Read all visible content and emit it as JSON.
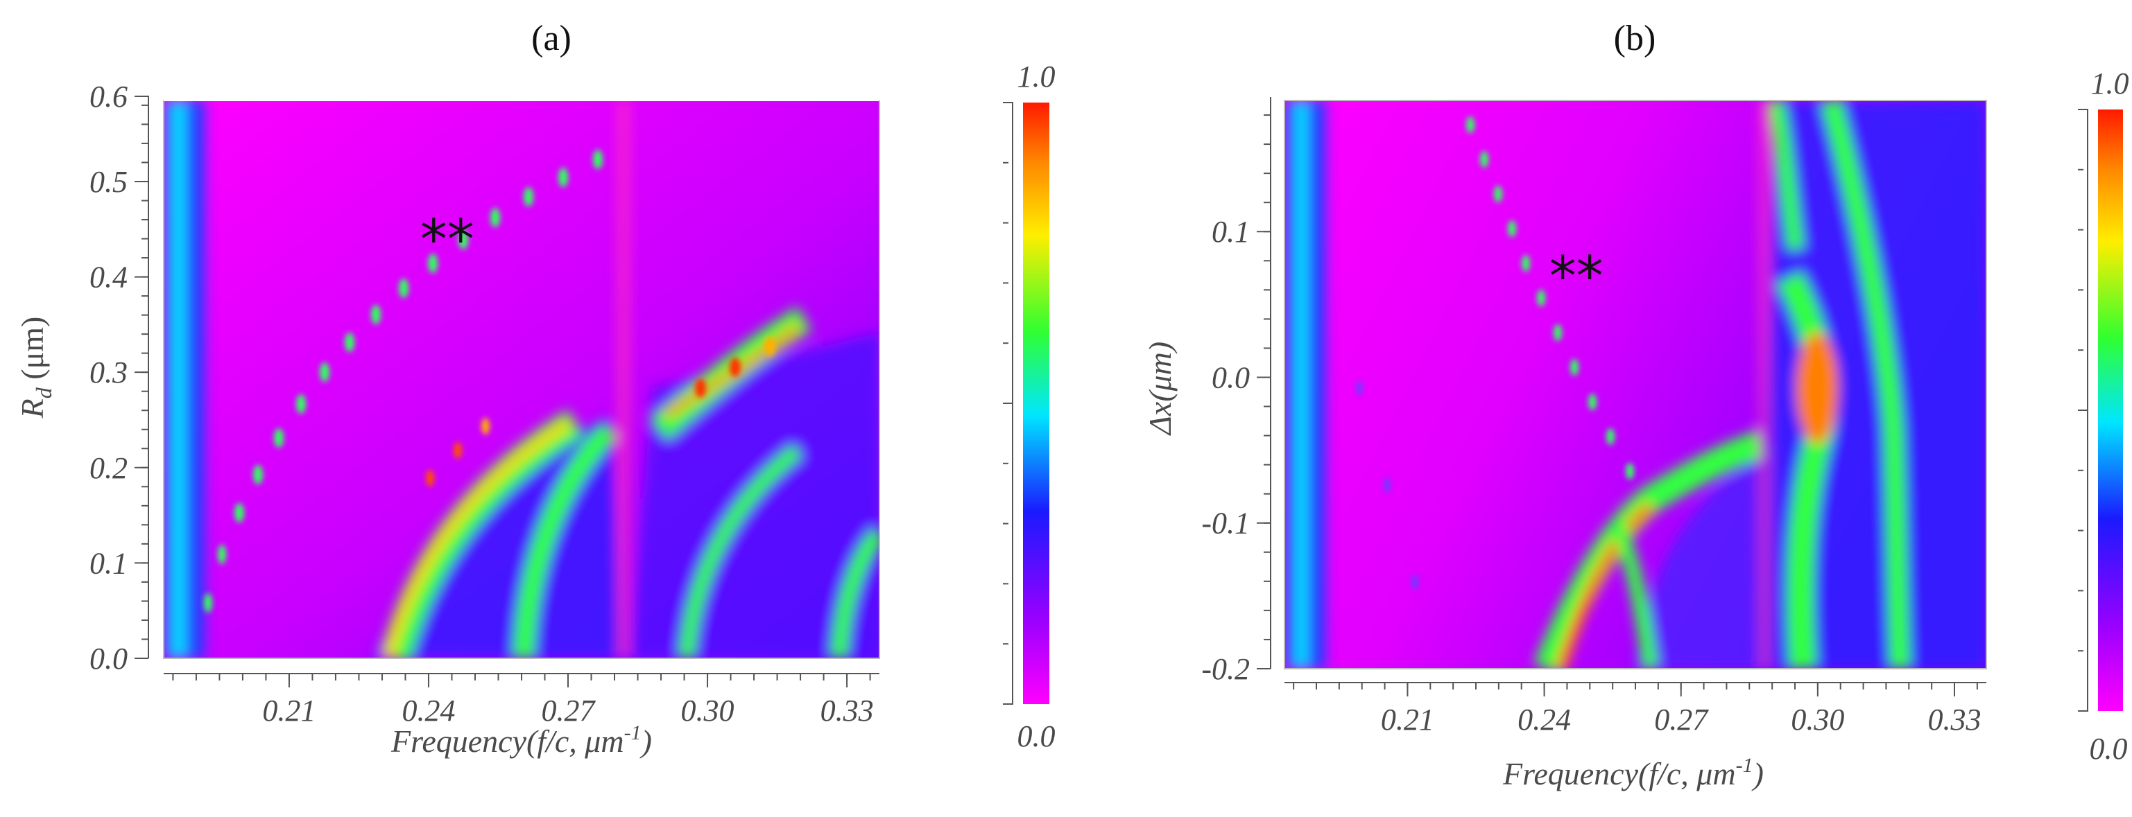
{
  "chart_data": [
    {
      "type": "heatmap",
      "panel_label": "(a)",
      "xlabel": "Frequency(f/c, μm",
      "xlabel_sup": "-1",
      "xlabel_close": ")",
      "ylabel": "R",
      "ylabel_sub": "d",
      "ylabel_unit": " (μm)",
      "xlim": [
        0.183,
        0.337
      ],
      "ylim": [
        0.0,
        0.585
      ],
      "x_ticks": [
        "0.21",
        "0.24",
        "0.27",
        "0.30",
        "0.33"
      ],
      "x_tick_values": [
        0.21,
        0.24,
        0.27,
        0.3,
        0.33
      ],
      "y_ticks": [
        "0.0",
        "0.1",
        "0.2",
        "0.3",
        "0.4",
        "0.5",
        "0.6"
      ],
      "y_tick_values": [
        0.0,
        0.1,
        0.2,
        0.3,
        0.4,
        0.5,
        0.6
      ],
      "annotation": {
        "text": "**",
        "x": 0.244,
        "y": 0.44
      },
      "colorbar": {
        "min_label": "0.0",
        "max_label": "1.0",
        "range": [
          0.0,
          1.0
        ]
      }
    },
    {
      "type": "heatmap",
      "panel_label": "(b)",
      "xlabel": "Frequency(f/c, μm",
      "xlabel_sup": "-1",
      "xlabel_close": ")",
      "ylabel": "Δx(μm)",
      "xlim": [
        0.183,
        0.337
      ],
      "ylim": [
        -0.2,
        0.19
      ],
      "x_ticks": [
        "0.21",
        "0.24",
        "0.27",
        "0.30",
        "0.33"
      ],
      "x_tick_values": [
        0.21,
        0.24,
        0.27,
        0.3,
        0.33
      ],
      "y_ticks": [
        "0.1",
        "0.0",
        "-0.1",
        "-0.2"
      ],
      "y_tick_values": [
        0.1,
        0.0,
        -0.1,
        -0.2
      ],
      "annotation": {
        "text": "**",
        "x": 0.247,
        "y": 0.07
      },
      "colorbar": {
        "min_label": "0.0",
        "max_label": "1.0",
        "range": [
          0.0,
          1.0
        ]
      }
    }
  ],
  "colors": {
    "magenta": "#ff00ff",
    "violet": "#8800ff",
    "blue": "#2030ff",
    "cyan": "#00e0e0",
    "green": "#30ff30",
    "yellow": "#ffe800",
    "orange": "#ff8800",
    "red": "#ff2000"
  }
}
